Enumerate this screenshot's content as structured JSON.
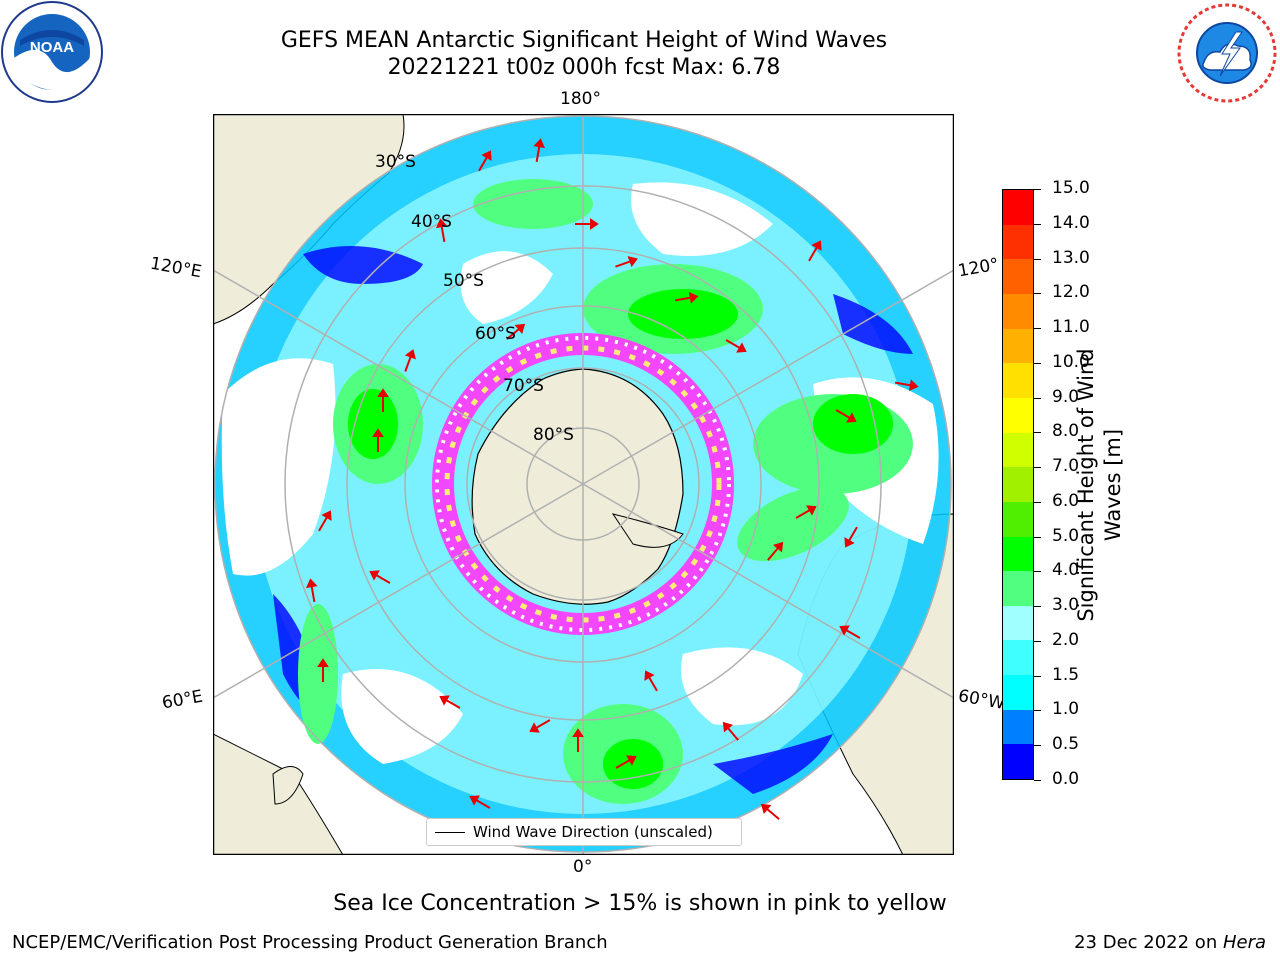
{
  "title": {
    "line1": "GEFS MEAN Antarctic Significant Height of Wind Waves",
    "line2": "20221221 t00z 000h fcst   Max: 6.78"
  },
  "logos": {
    "left": {
      "name": "NOAA",
      "ring_text": "NATIONAL OCEANIC AND ATMOSPHERIC ADMINISTRATION · U.S. DEPARTMENT OF COMMERCE"
    },
    "right": {
      "name": "NATIONAL WEATHER SERVICE"
    }
  },
  "map": {
    "projection": "south-polar-stereographic",
    "longitude_labels": {
      "top": "180°",
      "bottom": "0°",
      "left_upper": "120°E",
      "left_lower": "60°E",
      "right_upper": "120°",
      "right_lower": "60°W"
    },
    "latitude_labels": [
      "30°S",
      "40°S",
      "50°S",
      "60°S",
      "70°S",
      "80°S"
    ],
    "legend_label": "Wind Wave Direction (unscaled)",
    "colors": {
      "land": "#efedda",
      "ocean_empty": "#ffffff",
      "grid": "#b0b0b0",
      "arrow": "#e60000",
      "ice_low": "#ff33ff",
      "ice_high": "#ffff66"
    }
  },
  "colorbar": {
    "label": "Significant Height of Wind Waves [m]",
    "label_line1": "Significant Height of Wind",
    "label_line2": "Waves [m]",
    "ticks": [
      "0.0",
      "0.5",
      "1.0",
      "1.5",
      "2.0",
      "3.0",
      "4.0",
      "5.0",
      "6.0",
      "7.0",
      "8.0",
      "9.0",
      "10.0",
      "11.0",
      "12.0",
      "13.0",
      "14.0",
      "15.0"
    ],
    "colors": [
      "#0000ff",
      "#0080ff",
      "#00ffff",
      "#40ffff",
      "#a0ffff",
      "#50ff80",
      "#00ff00",
      "#50ee00",
      "#a0f000",
      "#d0ff00",
      "#ffff00",
      "#ffe000",
      "#ffb000",
      "#ff8c00",
      "#ff6000",
      "#ff3000",
      "#ff0000"
    ]
  },
  "notes": {
    "sea_ice": "Sea Ice Concentration > 15% is shown in pink to yellow"
  },
  "footer": {
    "left": "NCEP/EMC/Verification Post Processing Product Generation Branch",
    "date": "23 Dec 2022 on ",
    "machine": "Hera"
  }
}
